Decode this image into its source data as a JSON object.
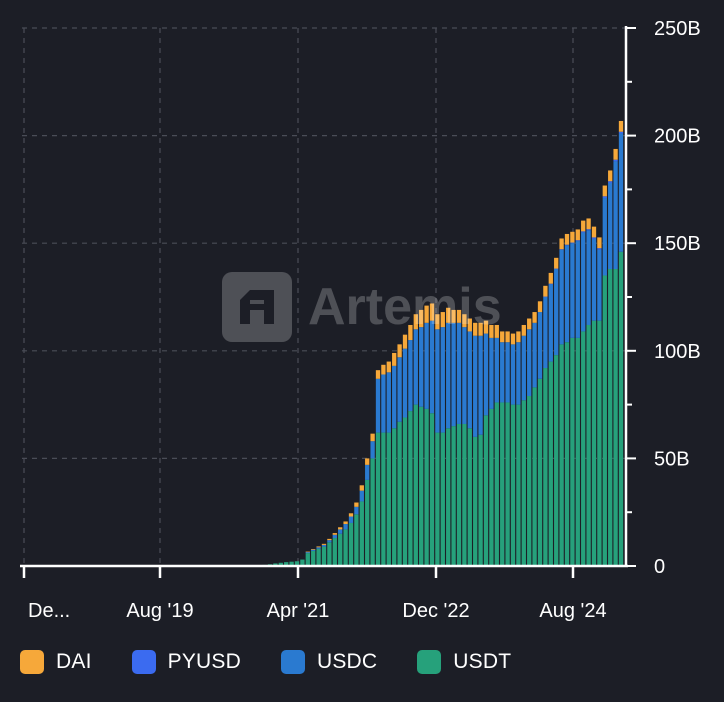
{
  "chart_data": {
    "type": "bar",
    "stacked": true,
    "watermark": "Artemis",
    "x_tick_labels": [
      "De...",
      "Aug '19",
      "Apr '21",
      "Dec '22",
      "Aug '24"
    ],
    "y_tick_labels": [
      "0",
      "50B",
      "100B",
      "150B",
      "200B",
      "250B"
    ],
    "ylim": [
      0,
      250
    ],
    "y_unit": "B",
    "grid": true,
    "legend_position": "bottom",
    "series": [
      {
        "name": "DAI",
        "color": "#f6a83a"
      },
      {
        "name": "PYUSD",
        "color": "#3b6bf0"
      },
      {
        "name": "USDC",
        "color": "#2a7ad0"
      },
      {
        "name": "USDT",
        "color": "#26a17b"
      }
    ],
    "usdt": [
      0.5,
      0.8,
      1.2,
      1.5,
      1.8,
      2.0,
      2.2,
      3,
      6,
      7,
      8,
      9,
      11,
      13,
      15,
      17,
      20,
      24,
      30,
      40,
      50,
      62,
      62,
      62,
      64,
      67,
      69,
      72,
      75,
      74,
      73,
      71,
      62,
      62,
      64,
      65,
      66,
      66,
      64,
      60,
      61,
      70,
      73,
      76,
      76,
      76,
      75,
      75,
      77,
      79,
      83,
      87,
      92,
      95,
      98,
      103,
      104,
      106,
      106,
      109,
      112,
      114,
      114,
      135,
      138,
      138,
      146
    ],
    "usdc": [
      0,
      0,
      0,
      0,
      0,
      0,
      0,
      0,
      0.5,
      0.6,
      0.7,
      0.8,
      1,
      1.5,
      2,
      2.5,
      3,
      3.5,
      5,
      7,
      8,
      25,
      27,
      28,
      29,
      30,
      32,
      33,
      35,
      37,
      40,
      43,
      48,
      49,
      49,
      48,
      47,
      45,
      45,
      47,
      46,
      38,
      33,
      30,
      28,
      28,
      28,
      29,
      30,
      31,
      30,
      31,
      33,
      36,
      40,
      44,
      45,
      44,
      45,
      46,
      44,
      38,
      33,
      36,
      40,
      50,
      55
    ],
    "dai": [
      0,
      0,
      0,
      0,
      0,
      0,
      0,
      0,
      0.2,
      0.3,
      0.4,
      0.5,
      0.6,
      0.8,
      1,
      1.2,
      1.5,
      2,
      2.5,
      3,
      3.5,
      4,
      4.5,
      5,
      6,
      6,
      6.5,
      7,
      7,
      8,
      8,
      8,
      7,
      7,
      7,
      6,
      6,
      6,
      6,
      6,
      6,
      6,
      6,
      6,
      5,
      5,
      5,
      5,
      5,
      5,
      5,
      5,
      5,
      5,
      5,
      5,
      5,
      5,
      5,
      5,
      5,
      5,
      5,
      5,
      5,
      5,
      5
    ],
    "pyusd": [
      0,
      0,
      0,
      0,
      0,
      0,
      0,
      0,
      0,
      0,
      0,
      0,
      0,
      0,
      0,
      0,
      0,
      0,
      0,
      0,
      0,
      0,
      0,
      0,
      0,
      0,
      0,
      0,
      0,
      0,
      0,
      0,
      0,
      0,
      0,
      0,
      0,
      0,
      0,
      0,
      0,
      0,
      0,
      0,
      0,
      0,
      0,
      0,
      0,
      0,
      0,
      0,
      0.2,
      0.2,
      0.2,
      0.2,
      0.3,
      0.3,
      0.4,
      0.5,
      0.5,
      0.7,
      0.7,
      0.8,
      0.8,
      0.8,
      0.8
    ]
  }
}
